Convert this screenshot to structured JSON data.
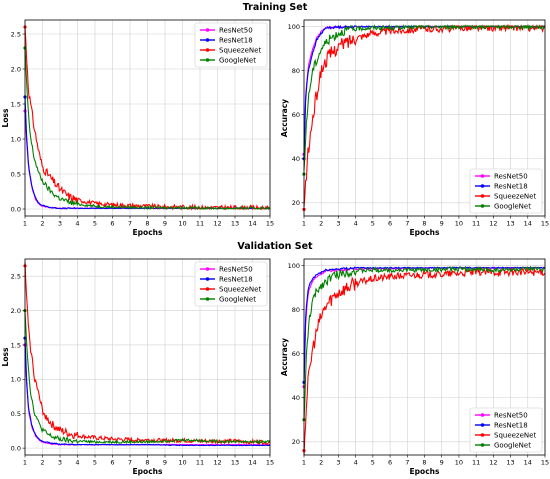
{
  "rows": [
    {
      "title": "Training Set"
    },
    {
      "title": "Validation Set"
    }
  ],
  "chart_data": [
    {
      "id": "train-loss",
      "type": "line",
      "xlabel": "Epochs",
      "ylabel": "Loss",
      "xlim": [
        1,
        15
      ],
      "ylim": [
        -0.1,
        2.7
      ],
      "xticks": [
        1,
        2,
        3,
        4,
        5,
        6,
        7,
        8,
        9,
        10,
        11,
        12,
        13,
        14,
        15
      ],
      "yticks": [
        0.0,
        0.5,
        1.0,
        1.5,
        2.0,
        2.5
      ],
      "ytick_labels": [
        "0.0",
        "0.5",
        "1.0",
        "1.5",
        "2.0",
        "2.5"
      ],
      "grid": true,
      "legend_position": "upper-right",
      "series": [
        {
          "name": "ResNet50",
          "color": "#ff00ff",
          "x": [
            1,
            1.1,
            1.2,
            1.4,
            1.6,
            1.8,
            2,
            2.5,
            3,
            4,
            6,
            8,
            10,
            12,
            15
          ],
          "values": [
            1.4,
            0.95,
            0.6,
            0.3,
            0.14,
            0.07,
            0.04,
            0.02,
            0.01,
            0.01,
            0.01,
            0.01,
            0.01,
            0.01,
            0.01
          ]
        },
        {
          "name": "ResNet18",
          "color": "#0000ff",
          "x": [
            1,
            1.1,
            1.2,
            1.4,
            1.6,
            1.8,
            2,
            2.5,
            3,
            4,
            6,
            8,
            10,
            12,
            15
          ],
          "values": [
            1.6,
            1.0,
            0.62,
            0.32,
            0.16,
            0.08,
            0.05,
            0.02,
            0.01,
            0.01,
            0.01,
            0.01,
            0.01,
            0.01,
            0.01
          ]
        },
        {
          "name": "SqueezeNet",
          "color": "#ff0000",
          "x": [
            1,
            1.2,
            1.5,
            1.8,
            2,
            2.3,
            2.6,
            3,
            3.5,
            4,
            5,
            6,
            7,
            8,
            9,
            10,
            11,
            12,
            13,
            14,
            15
          ],
          "values": [
            2.6,
            1.7,
            1.2,
            0.8,
            0.6,
            0.5,
            0.4,
            0.28,
            0.18,
            0.13,
            0.08,
            0.06,
            0.05,
            0.04,
            0.03,
            0.03,
            0.02,
            0.02,
            0.02,
            0.02,
            0.01
          ]
        },
        {
          "name": "GoogleNet",
          "color": "#008000",
          "x": [
            1,
            1.15,
            1.3,
            1.5,
            1.8,
            2,
            2.3,
            2.6,
            3,
            3.5,
            4,
            5,
            6,
            8,
            10,
            12,
            15
          ],
          "values": [
            2.3,
            1.5,
            1.05,
            0.75,
            0.5,
            0.4,
            0.3,
            0.22,
            0.15,
            0.1,
            0.07,
            0.04,
            0.03,
            0.02,
            0.02,
            0.01,
            0.01
          ]
        }
      ]
    },
    {
      "id": "train-acc",
      "type": "line",
      "xlabel": "Epochs",
      "ylabel": "Accuracy",
      "xlim": [
        1,
        15
      ],
      "ylim": [
        14,
        103
      ],
      "xticks": [
        1,
        2,
        3,
        4,
        5,
        6,
        7,
        8,
        9,
        10,
        11,
        12,
        13,
        14,
        15
      ],
      "yticks": [
        20,
        40,
        60,
        80,
        100
      ],
      "ytick_labels": [
        "20",
        "40",
        "60",
        "80",
        "100"
      ],
      "grid": true,
      "legend_position": "lower-right",
      "series": [
        {
          "name": "ResNet50",
          "color": "#ff00ff",
          "x": [
            1,
            1.1,
            1.25,
            1.5,
            1.75,
            2,
            2.3,
            3,
            4,
            6,
            8,
            10,
            12,
            15
          ],
          "values": [
            42,
            70,
            82,
            90,
            95,
            98,
            99.5,
            99.8,
            100,
            100,
            100,
            100,
            100,
            100
          ]
        },
        {
          "name": "ResNet18",
          "color": "#0000ff",
          "x": [
            1,
            1.1,
            1.25,
            1.5,
            1.75,
            2,
            2.3,
            3,
            4,
            6,
            8,
            10,
            12,
            15
          ],
          "values": [
            40,
            68,
            80,
            88,
            94,
            97,
            99.5,
            99.8,
            100,
            100,
            100,
            100,
            100,
            100
          ]
        },
        {
          "name": "SqueezeNet",
          "color": "#ff0000",
          "x": [
            1,
            1.2,
            1.5,
            1.8,
            2,
            2.3,
            2.6,
            3,
            3.5,
            4,
            5,
            6,
            7,
            8,
            9,
            10,
            11,
            12,
            13,
            14,
            15
          ],
          "values": [
            17,
            40,
            58,
            72,
            80,
            85,
            88,
            91,
            93,
            95,
            97,
            98,
            98.5,
            99,
            99,
            99.5,
            99.5,
            99.5,
            99.5,
            99.5,
            99.5
          ]
        },
        {
          "name": "GoogleNet",
          "color": "#008000",
          "x": [
            1,
            1.15,
            1.3,
            1.5,
            1.8,
            2,
            2.3,
            2.6,
            3,
            3.5,
            4,
            5,
            6,
            8,
            10,
            12,
            15
          ],
          "values": [
            33,
            58,
            70,
            80,
            86,
            90,
            93,
            95,
            97,
            98.5,
            99,
            99.5,
            99.5,
            100,
            100,
            100,
            100
          ]
        }
      ]
    },
    {
      "id": "val-loss",
      "type": "line",
      "xlabel": "Epochs",
      "ylabel": "Loss",
      "xlim": [
        1,
        15
      ],
      "ylim": [
        -0.1,
        2.75
      ],
      "xticks": [
        1,
        2,
        3,
        4,
        5,
        6,
        7,
        8,
        9,
        10,
        11,
        12,
        13,
        14,
        15
      ],
      "yticks": [
        0.0,
        0.5,
        1.0,
        1.5,
        2.0,
        2.5
      ],
      "ytick_labels": [
        "0.0",
        "0.5",
        "1.0",
        "1.5",
        "2.0",
        "2.5"
      ],
      "grid": true,
      "legend_position": "upper-right",
      "series": [
        {
          "name": "ResNet50",
          "color": "#ff00ff",
          "x": [
            1,
            1.1,
            1.2,
            1.4,
            1.6,
            1.8,
            2,
            2.5,
            3,
            4,
            6,
            8,
            10,
            12,
            15
          ],
          "values": [
            1.5,
            0.9,
            0.55,
            0.3,
            0.18,
            0.12,
            0.09,
            0.06,
            0.05,
            0.05,
            0.05,
            0.05,
            0.05,
            0.05,
            0.05
          ]
        },
        {
          "name": "ResNet18",
          "color": "#0000ff",
          "x": [
            1,
            1.1,
            1.2,
            1.4,
            1.6,
            1.8,
            2,
            2.5,
            3,
            4,
            6,
            8,
            10,
            12,
            15
          ],
          "values": [
            1.6,
            0.95,
            0.58,
            0.32,
            0.19,
            0.13,
            0.1,
            0.07,
            0.06,
            0.05,
            0.05,
            0.05,
            0.04,
            0.04,
            0.04
          ]
        },
        {
          "name": "SqueezeNet",
          "color": "#ff0000",
          "x": [
            1,
            1.2,
            1.5,
            1.8,
            2,
            2.3,
            2.6,
            3,
            3.5,
            4,
            5,
            6,
            7,
            8,
            9,
            10,
            11,
            12,
            13,
            14,
            15
          ],
          "values": [
            2.65,
            1.7,
            1.1,
            0.75,
            0.55,
            0.42,
            0.33,
            0.26,
            0.21,
            0.18,
            0.15,
            0.13,
            0.12,
            0.12,
            0.11,
            0.11,
            0.1,
            0.1,
            0.1,
            0.09,
            0.09
          ]
        },
        {
          "name": "GoogleNet",
          "color": "#008000",
          "x": [
            1,
            1.15,
            1.3,
            1.5,
            1.8,
            2,
            2.3,
            2.6,
            3,
            3.5,
            4,
            5,
            6,
            8,
            10,
            12,
            15
          ],
          "values": [
            2.0,
            1.3,
            0.85,
            0.55,
            0.35,
            0.27,
            0.2,
            0.16,
            0.13,
            0.11,
            0.1,
            0.09,
            0.09,
            0.09,
            0.12,
            0.1,
            0.09
          ]
        }
      ]
    },
    {
      "id": "val-acc",
      "type": "line",
      "xlabel": "Epochs",
      "ylabel": "Accuracy",
      "xlim": [
        1,
        15
      ],
      "ylim": [
        14,
        103
      ],
      "xticks": [
        1,
        2,
        3,
        4,
        5,
        6,
        7,
        8,
        9,
        10,
        11,
        12,
        13,
        14,
        15
      ],
      "yticks": [
        20,
        40,
        60,
        80,
        100
      ],
      "ytick_labels": [
        "20",
        "40",
        "60",
        "80",
        "100"
      ],
      "grid": true,
      "legend_position": "lower-right",
      "series": [
        {
          "name": "ResNet50",
          "color": "#ff00ff",
          "x": [
            1,
            1.1,
            1.25,
            1.5,
            1.75,
            2,
            2.3,
            3,
            4,
            6,
            8,
            10,
            12,
            15
          ],
          "values": [
            45,
            75,
            88,
            93,
            95,
            96.5,
            97.5,
            98,
            98.5,
            98.5,
            99,
            99,
            99,
            99
          ]
        },
        {
          "name": "ResNet18",
          "color": "#0000ff",
          "x": [
            1,
            1.1,
            1.25,
            1.5,
            1.75,
            2,
            2.3,
            3,
            4,
            6,
            8,
            10,
            12,
            15
          ],
          "values": [
            47,
            78,
            90,
            94,
            96,
            97,
            98,
            98.5,
            99,
            99,
            99,
            99,
            99,
            99
          ]
        },
        {
          "name": "SqueezeNet",
          "color": "#ff0000",
          "x": [
            1,
            1.2,
            1.5,
            1.8,
            2,
            2.3,
            2.6,
            3,
            3.5,
            4,
            5,
            6,
            7,
            8,
            9,
            10,
            11,
            12,
            13,
            14,
            15
          ],
          "values": [
            16,
            45,
            62,
            72,
            77,
            82,
            85,
            88,
            90,
            92,
            94,
            95,
            95.5,
            96,
            96,
            96.5,
            97,
            97,
            97,
            97,
            97
          ]
        },
        {
          "name": "GoogleNet",
          "color": "#008000",
          "x": [
            1,
            1.15,
            1.3,
            1.5,
            1.8,
            2,
            2.3,
            2.6,
            3,
            3.5,
            4,
            5,
            6,
            8,
            10,
            12,
            15
          ],
          "values": [
            30,
            60,
            75,
            84,
            89,
            91,
            93,
            95,
            96,
            97,
            97.5,
            98,
            98,
            98,
            98.5,
            98,
            98.5
          ]
        }
      ]
    }
  ]
}
